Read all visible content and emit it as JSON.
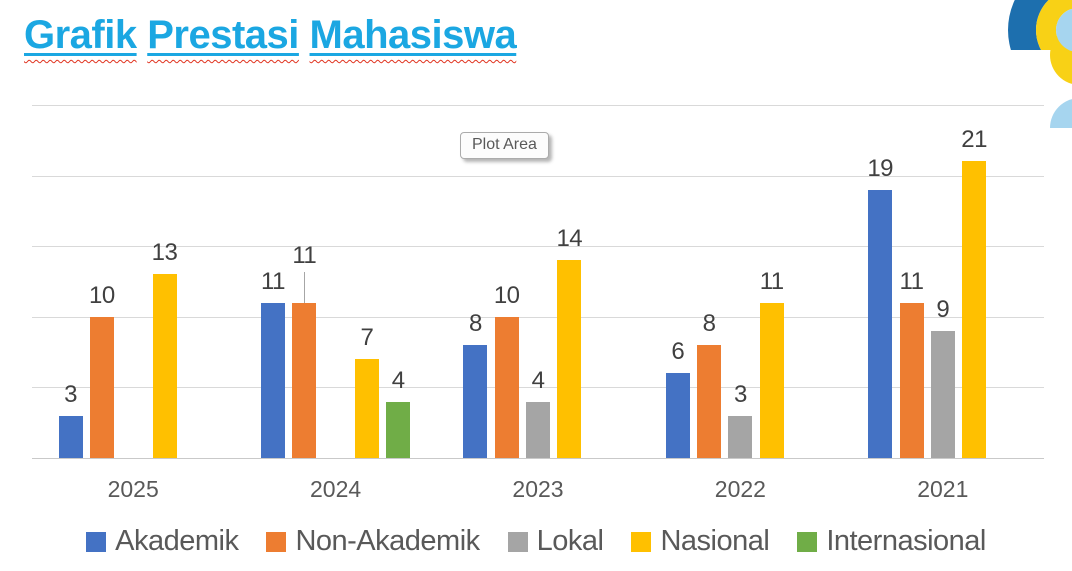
{
  "page": {
    "title": "Grafik Prestasi Mahasiswa",
    "title_color": "#1BA7E2",
    "plot_area_label": "Plot Area"
  },
  "chart_data": {
    "type": "bar",
    "title": "Grafik Prestasi Mahasiswa",
    "categories": [
      "2025",
      "2024",
      "2023",
      "2022",
      "2021"
    ],
    "series": [
      {
        "name": "Akademik",
        "color": "#4472C4",
        "values": [
          3,
          11,
          8,
          6,
          19
        ]
      },
      {
        "name": "Non-Akademik",
        "color": "#ED7D31",
        "values": [
          10,
          11,
          10,
          8,
          11
        ]
      },
      {
        "name": "Lokal",
        "color": "#A5A5A5",
        "values": [
          null,
          null,
          4,
          3,
          9
        ]
      },
      {
        "name": "Nasional",
        "color": "#FFC000",
        "values": [
          13,
          7,
          14,
          11,
          21
        ]
      },
      {
        "name": "Internasional",
        "color": "#70AD47",
        "values": [
          null,
          4,
          null,
          null,
          null
        ]
      }
    ],
    "xlabel": "",
    "ylabel": "",
    "ylim": [
      0,
      25
    ],
    "gridline_step": 5,
    "grid": true,
    "data_labels": true,
    "legend_position": "bottom",
    "label_leader_line": {
      "category": "2024",
      "series": "Non-Akademik"
    }
  },
  "decor": {
    "squiggle_color": "#E0321E",
    "logo_colors": {
      "dark_blue": "#1D6FAE",
      "yellow": "#F8D116",
      "light_blue": "#A6D5EF"
    }
  }
}
